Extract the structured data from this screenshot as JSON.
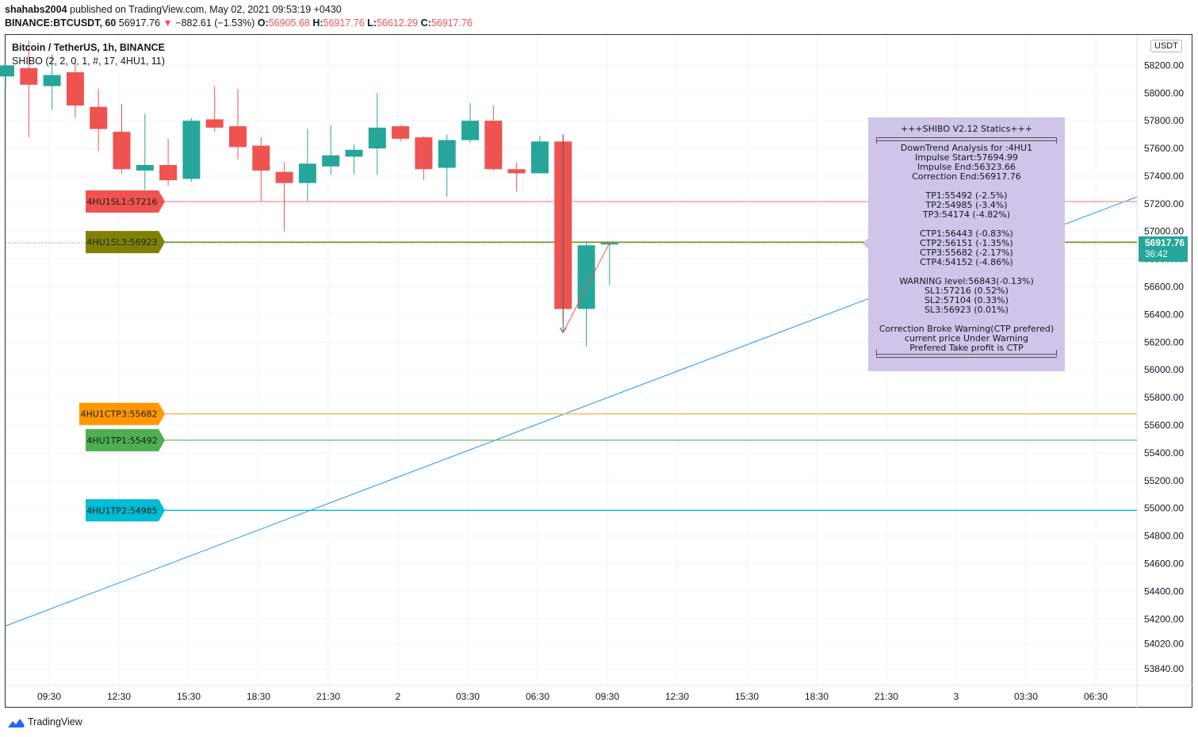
{
  "header": {
    "author": "shahabs2004",
    "published_text": "published on TradingView.com, May 02, 2021 09:53:19 +0430",
    "symbol": "BINANCE:BTCUSDT, 60",
    "last_price": "56917.76",
    "down_marker": "▼",
    "change": "−882.61 (−1.53%)",
    "o_label": "O:",
    "o": "56905.68",
    "h_label": "H:",
    "h": "56917.76",
    "l_label": "L:",
    "l": "56612.29",
    "c_label": "C:",
    "c": "56917.76"
  },
  "legend": {
    "title": "Bitcoin / TetherUS, 1h, BINANCE",
    "indicator": "SHIBO (2, 2, 0, 1, #, 17, 4HU1, 11)"
  },
  "currency_button": "USDT",
  "price_tag": {
    "price": "56917.76",
    "countdown": "36:42"
  },
  "stats_box": {
    "title": "+++SHIBO V2.12 Statics+++",
    "analysis": [
      "DownTrend Analysis for :4HU1",
      "Impulse Start:57694.99",
      "Impulse End:56323.66",
      "Correction End:56917.76"
    ],
    "targets": [
      "TP1:55492 (-2.5%)",
      "TP2:54985 (-3.4%)",
      "TP3:54174 (-4.82%)"
    ],
    "ctp": [
      "CTP1:56443 (-0.83%)",
      "CTP2:56151 (-1.35%)",
      "CTP3:55682 (-2.17%)",
      "CTP4:54152 (-4.86%)"
    ],
    "warning": [
      "WARNING level:56843(-0.13%)",
      "SL1:57216 (0.52%)",
      "SL2:57104 (0.33%)",
      "SL3:56923 (0.01%)"
    ],
    "notes": [
      "Correction Broke Warning(CTP prefered)",
      "current price Under Warning",
      "Prefered Take profit is CTP"
    ]
  },
  "branding": "TradingView",
  "chart_data": {
    "type": "candlestick",
    "y_axis": {
      "range": [
        53720,
        58420
      ],
      "ticks": [
        53840,
        54020,
        54200,
        54400,
        54600,
        54800,
        55000,
        55200,
        55400,
        55600,
        55800,
        56000,
        56200,
        56400,
        56600,
        56800,
        57000,
        57200,
        57400,
        57600,
        57800,
        58000,
        58200
      ]
    },
    "x_axis": {
      "ticks": [
        "09:30",
        "12:30",
        "15:30",
        "18:30",
        "21:30",
        "2",
        "03:30",
        "06:30",
        "09:30",
        "12:30",
        "15:30",
        "18:30",
        "21:30",
        "3",
        "03:30",
        "06:30"
      ]
    },
    "candles": [
      {
        "o": 58120,
        "h": 58200,
        "l": 58040,
        "c": 58200
      },
      {
        "o": 58180,
        "h": 58380,
        "l": 57680,
        "c": 58060
      },
      {
        "o": 58050,
        "h": 58280,
        "l": 57880,
        "c": 58130
      },
      {
        "o": 58150,
        "h": 58250,
        "l": 57820,
        "c": 57910
      },
      {
        "o": 57900,
        "h": 58030,
        "l": 57580,
        "c": 57740
      },
      {
        "o": 57720,
        "h": 57920,
        "l": 57420,
        "c": 57450
      },
      {
        "o": 57440,
        "h": 57850,
        "l": 57300,
        "c": 57480
      },
      {
        "o": 57480,
        "h": 57670,
        "l": 57330,
        "c": 57370
      },
      {
        "o": 57380,
        "h": 57820,
        "l": 57360,
        "c": 57800
      },
      {
        "o": 57810,
        "h": 58050,
        "l": 57720,
        "c": 57750
      },
      {
        "o": 57760,
        "h": 58030,
        "l": 57520,
        "c": 57610
      },
      {
        "o": 57620,
        "h": 57680,
        "l": 57220,
        "c": 57440
      },
      {
        "o": 57430,
        "h": 57500,
        "l": 57000,
        "c": 57350
      },
      {
        "o": 57350,
        "h": 57740,
        "l": 57220,
        "c": 57490
      },
      {
        "o": 57470,
        "h": 57770,
        "l": 57410,
        "c": 57550
      },
      {
        "o": 57540,
        "h": 57630,
        "l": 57410,
        "c": 57590
      },
      {
        "o": 57600,
        "h": 58000,
        "l": 57410,
        "c": 57750
      },
      {
        "o": 57760,
        "h": 57770,
        "l": 57650,
        "c": 57670
      },
      {
        "o": 57680,
        "h": 57690,
        "l": 57370,
        "c": 57450
      },
      {
        "o": 57460,
        "h": 57700,
        "l": 57250,
        "c": 57660
      },
      {
        "o": 57660,
        "h": 57930,
        "l": 57640,
        "c": 57800
      },
      {
        "o": 57800,
        "h": 57910,
        "l": 57440,
        "c": 57450
      },
      {
        "o": 57450,
        "h": 57500,
        "l": 57290,
        "c": 57420
      },
      {
        "o": 57420,
        "h": 57690,
        "l": 57420,
        "c": 57650
      },
      {
        "o": 57650,
        "h": 57700,
        "l": 56350,
        "c": 56440
      },
      {
        "o": 56440,
        "h": 56930,
        "l": 56170,
        "c": 56900
      },
      {
        "o": 56905.68,
        "h": 56917.76,
        "l": 56612.29,
        "c": 56917.76
      }
    ],
    "levels": [
      {
        "label": "4HU1SL1:57216",
        "value": 57216,
        "line": "#ef9a9a",
        "tag": "#ef5350"
      },
      {
        "label": "4HU1SL3:56923",
        "value": 56923,
        "line": "#808000",
        "tag": "#808000"
      },
      {
        "label": "4HU1CTP3:55682",
        "value": 55682,
        "line": "#ffb74d",
        "tag": "#ff9800"
      },
      {
        "label": "4HU1TP1:55492",
        "value": 55492,
        "line": "#66bb6a",
        "tag": "#4caf50"
      },
      {
        "label": "4HU1TP2:54985",
        "value": 54985,
        "line": "#00bcd4",
        "tag": "#00bcd4"
      }
    ],
    "trendline": {
      "from": 54150,
      "to": 57250,
      "color": "#2196f3"
    },
    "colors": {
      "up": "#26a69a",
      "down": "#ef5350",
      "grid": "#f0f3fa"
    }
  }
}
